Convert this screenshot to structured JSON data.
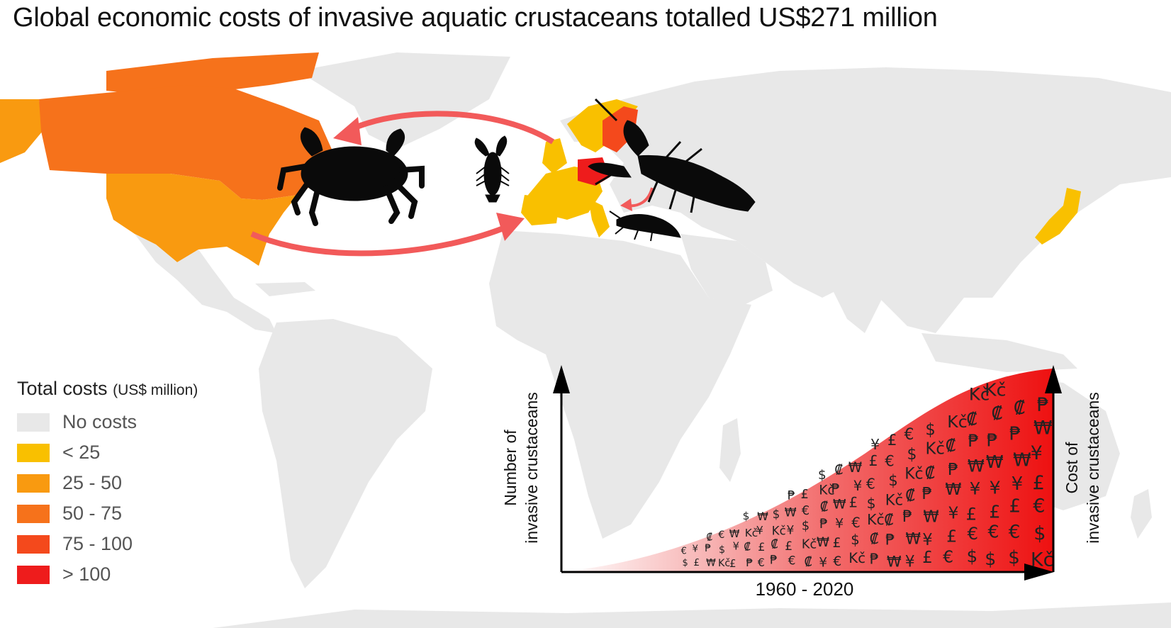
{
  "title": "Global economic costs of invasive aquatic crustaceans totalled US$271 million",
  "legend": {
    "title": "Total costs",
    "unit": "(US$ million)",
    "items": [
      {
        "label": "No costs",
        "color": "#e8e8e8"
      },
      {
        "label": "< 25",
        "color": "#f9c000"
      },
      {
        "label": "25 - 50",
        "color": "#f99a10"
      },
      {
        "label": "50 - 75",
        "color": "#f6721b"
      },
      {
        "label": "75 - 100",
        "color": "#f4491c"
      },
      {
        "label": "> 100",
        "color": "#ee1c1c"
      }
    ]
  },
  "inset": {
    "y_left_label_1": "Number of",
    "y_left_label_2": "invasive crustaceans",
    "y_right_label_1": "Cost of",
    "y_right_label_2": "invasive crustaceans",
    "x_label": "1960 - 2020",
    "currency_symbols": [
      "$",
      "€",
      "£",
      "¥",
      "₩",
      "₱",
      "₡",
      "Kč"
    ]
  },
  "colors": {
    "land": "#e8e8e8",
    "arrow": "#f25a5a",
    "silhouette": "#0a0a0a"
  }
}
